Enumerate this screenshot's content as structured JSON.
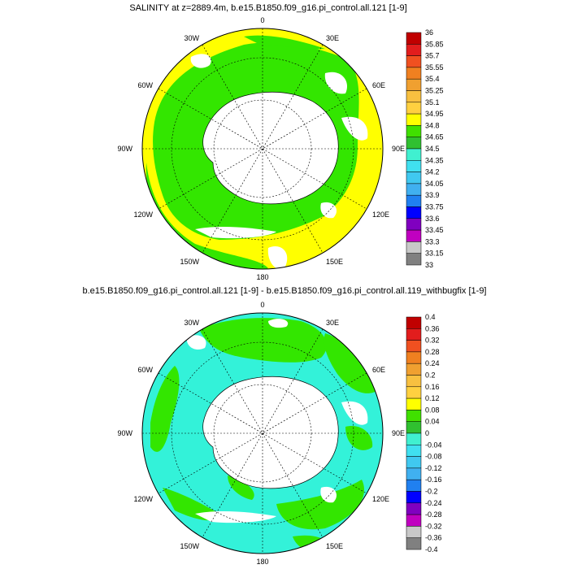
{
  "panels": [
    {
      "title": "SALINITY at z=2889.4m, b.e15.B1850.f09_g16.pi_control.all.121 [1-9]",
      "lon_labels": {
        "top": "0",
        "bottom": "180",
        "left": "90W",
        "right": "90E",
        "tl30": "30W",
        "tr30": "30E",
        "tl60": "60W",
        "tr60": "60E",
        "bl120": "120W",
        "br120": "120E",
        "bl150": "150W",
        "br150": "150E"
      },
      "colorbar": {
        "labels": [
          "36",
          "35.85",
          "35.7",
          "35.55",
          "35.4",
          "35.25",
          "35.1",
          "34.95",
          "34.8",
          "34.65",
          "34.5",
          "34.35",
          "34.2",
          "34.05",
          "33.9",
          "33.75",
          "33.6",
          "33.45",
          "33.3",
          "33.15",
          "33"
        ]
      }
    },
    {
      "title": "b.e15.B1850.f09_g16.pi_control.all.121 [1-9] - b.e15.B1850.f09_g16.pi_control.all.119_withbugfix [1-9]",
      "lon_labels": {
        "top": "0",
        "bottom": "180",
        "left": "90W",
        "right": "90E",
        "tl30": "30W",
        "tr30": "30E",
        "tl60": "60W",
        "tr60": "60E",
        "bl120": "120W",
        "br120": "120E",
        "bl150": "150W",
        "br150": "150E"
      },
      "colorbar": {
        "labels": [
          "0.4",
          "0.36",
          "0.32",
          "0.28",
          "0.24",
          "0.2",
          "0.16",
          "0.12",
          "0.08",
          "0.04",
          "0",
          "-0.04",
          "-0.08",
          "-0.12",
          "-0.16",
          "-0.2",
          "-0.24",
          "-0.28",
          "-0.32",
          "-0.36",
          "-0.4"
        ]
      }
    }
  ],
  "colors": {
    "palette": [
      "#c00000",
      "#e21d1d",
      "#f05020",
      "#f08020",
      "#f0a030",
      "#f8c040",
      "#ffd040",
      "#ffff00",
      "#40e000",
      "#30c030",
      "#40f0d0",
      "#40e0f0",
      "#40c8f0",
      "#40b0f0",
      "#2080f0",
      "#0000ff",
      "#8000c0",
      "#c000c0",
      "#c8c8c8",
      "#808080"
    ],
    "upper_ocean_green": "#33e600",
    "upper_ocean_yellow": "#ffff00",
    "lower_ocean_cyan": "#33f2d9",
    "lower_ocean_green": "#33e600",
    "land": "#ffffff"
  }
}
